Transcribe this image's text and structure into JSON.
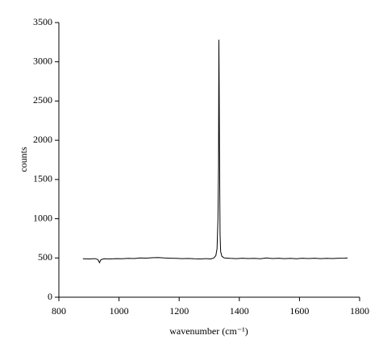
{
  "chart_data": {
    "type": "line",
    "x_label": "wavenumber (cm⁻¹)",
    "y_label": "counts",
    "xlim": [
      800,
      1800
    ],
    "xticks": [
      800,
      1000,
      1200,
      1400,
      1600,
      1800
    ],
    "ylim": [
      0,
      3500
    ],
    "yticks": [
      0,
      500,
      1000,
      1500,
      2000,
      2500,
      3000,
      3500
    ],
    "grid": false,
    "series": [
      {
        "color": "#000000",
        "x": [
          880,
          900,
          920,
          930,
          935,
          940,
          950,
          970,
          990,
          1010,
          1030,
          1050,
          1070,
          1090,
          1110,
          1130,
          1150,
          1170,
          1190,
          1210,
          1230,
          1250,
          1270,
          1290,
          1305,
          1315,
          1322,
          1326,
          1329,
          1331,
          1332,
          1333,
          1334,
          1336,
          1338,
          1342,
          1350,
          1370,
          1390,
          1410,
          1430,
          1450,
          1470,
          1490,
          1510,
          1530,
          1550,
          1570,
          1590,
          1610,
          1630,
          1650,
          1670,
          1690,
          1710,
          1730,
          1750,
          1760
        ],
        "values": [
          490,
          488,
          492,
          480,
          440,
          478,
          490,
          487,
          492,
          490,
          495,
          493,
          500,
          498,
          503,
          505,
          500,
          497,
          495,
          492,
          494,
          490,
          488,
          492,
          488,
          500,
          530,
          620,
          1000,
          1700,
          3280,
          2720,
          1900,
          800,
          580,
          520,
          500,
          495,
          492,
          497,
          493,
          495,
          490,
          500,
          493,
          496,
          492,
          495,
          490,
          496,
          493,
          497,
          492,
          495,
          493,
          496,
          498,
          500
        ]
      }
    ]
  }
}
